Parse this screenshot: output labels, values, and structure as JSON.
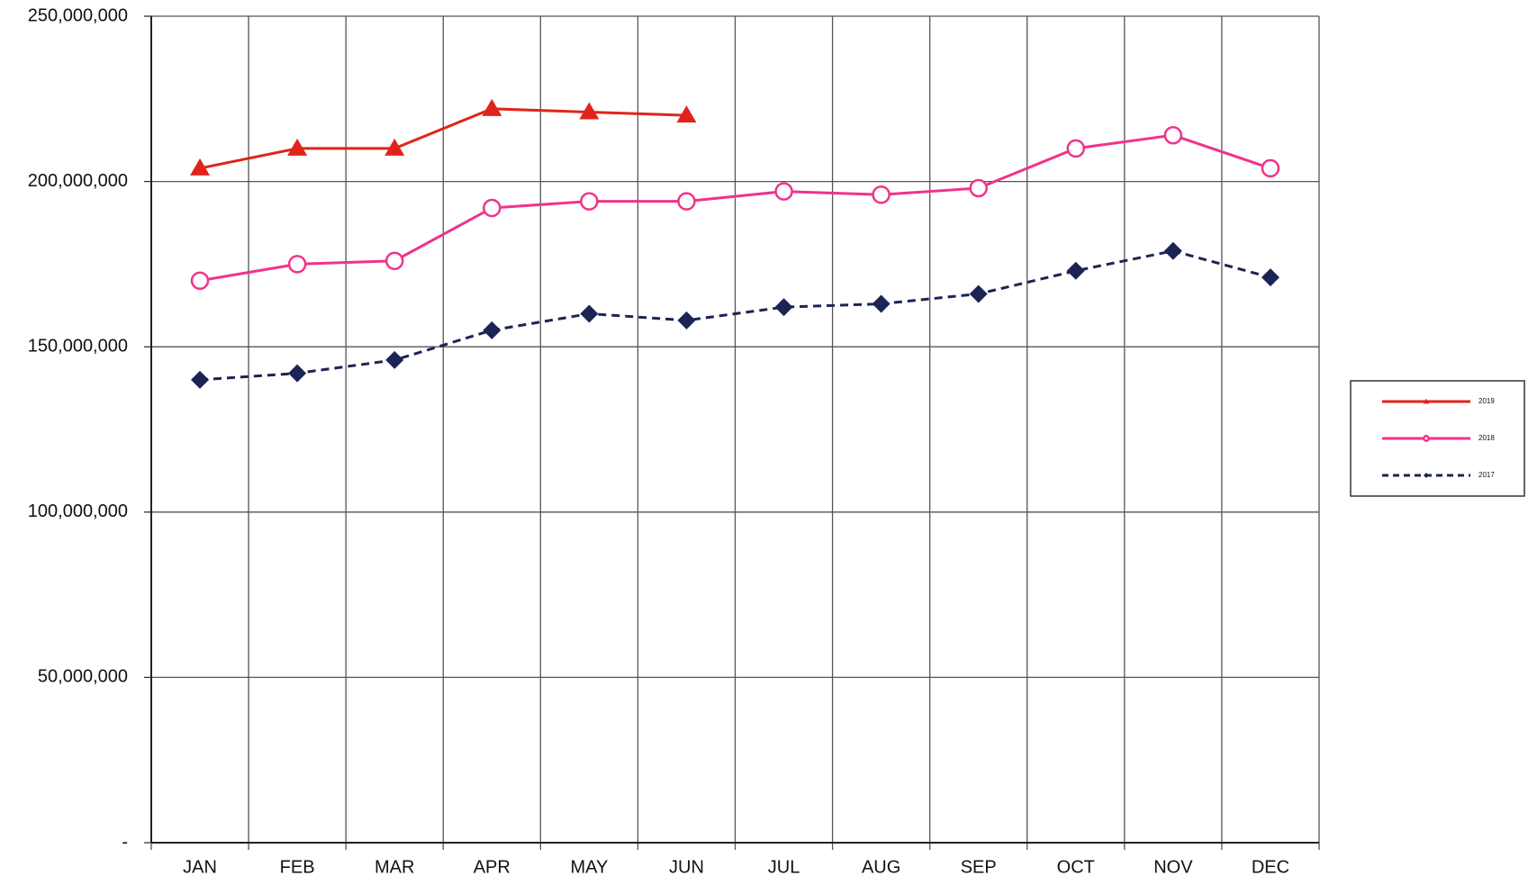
{
  "chart_data": {
    "type": "line",
    "categories": [
      "JAN",
      "FEB",
      "MAR",
      "APR",
      "MAY",
      "JUN",
      "JUL",
      "AUG",
      "SEP",
      "OCT",
      "NOV",
      "DEC"
    ],
    "series": [
      {
        "name": "2019",
        "color": "#e0241b",
        "marker": "triangle",
        "dashed": false,
        "values": [
          204000000,
          210000000,
          210000000,
          222000000,
          221000000,
          220000000,
          null,
          null,
          null,
          null,
          null,
          null
        ]
      },
      {
        "name": "2018",
        "color": "#f0338a",
        "marker": "circle",
        "dashed": false,
        "values": [
          170000000,
          175000000,
          176000000,
          192000000,
          194000000,
          194000000,
          197000000,
          196000000,
          198000000,
          210000000,
          214000000,
          204000000
        ]
      },
      {
        "name": "2017",
        "color": "#1c2456",
        "marker": "diamond",
        "dashed": true,
        "values": [
          140000000,
          142000000,
          146000000,
          155000000,
          160000000,
          158000000,
          162000000,
          163000000,
          166000000,
          173000000,
          179000000,
          171000000
        ]
      }
    ],
    "ylim": [
      0,
      250000000
    ],
    "yticks": [
      {
        "value": 0,
        "label": "-"
      },
      {
        "value": 50000000,
        "label": "50,000,000"
      },
      {
        "value": 100000000,
        "label": "100,000,000"
      },
      {
        "value": 150000000,
        "label": "150,000,000"
      },
      {
        "value": 200000000,
        "label": "200,000,000"
      },
      {
        "value": 250000000,
        "label": "250,000,000"
      }
    ],
    "grid": true,
    "legend": "right"
  }
}
